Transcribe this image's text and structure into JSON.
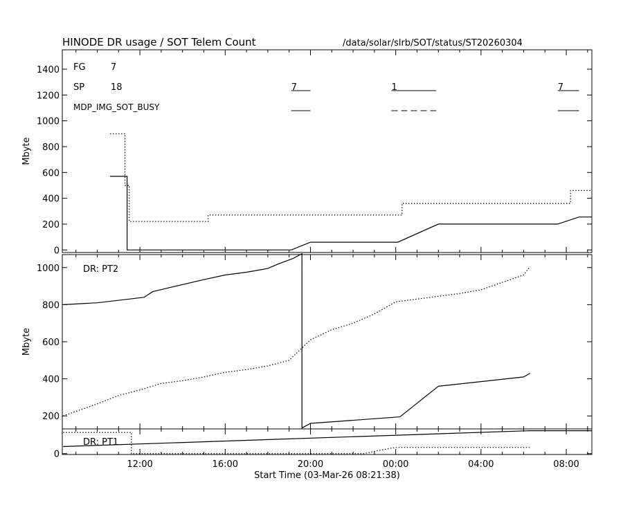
{
  "header": {
    "title": "HINODE DR usage / SOT Telem Count",
    "path": "/data/solar/slrb/SOT/status/ST20260304"
  },
  "chart_data": [
    {
      "type": "line",
      "ylabel": "Mbyte",
      "ylim": [
        -20,
        1550
      ],
      "yticks": [
        0,
        200,
        400,
        600,
        800,
        1000,
        1200,
        1400
      ],
      "xlim": [
        8.36,
        33.2
      ],
      "xticks": [
        12,
        16,
        20,
        24,
        28,
        32
      ],
      "xtick_labels": [
        "12:00",
        "16:00",
        "20:00",
        "00:00",
        "04:00",
        "08:00"
      ],
      "annotations": {
        "fg_label": "FG",
        "fg_count": "7",
        "sp_label": "SP",
        "sp_count": "18",
        "busy_label": "MDP_IMG_SOT_BUSY"
      },
      "sp_segments": [
        {
          "label": "7",
          "x": [
            19.1,
            20.0
          ]
        },
        {
          "label": "1",
          "x": [
            23.8,
            25.9
          ]
        },
        {
          "label": "7",
          "x": [
            31.6,
            32.6
          ]
        }
      ],
      "busy_segments": [
        {
          "x": [
            19.1,
            20.0
          ],
          "style": "solid"
        },
        {
          "x": [
            23.8,
            25.9
          ],
          "style": "dashed"
        },
        {
          "x": [
            31.6,
            32.6
          ],
          "style": "solid"
        }
      ],
      "series": [
        {
          "style": "solid",
          "x": [
            10.6,
            11.4,
            11.4,
            19.1,
            20.0,
            24.1,
            26.0,
            31.6,
            32.6,
            33.2
          ],
          "y": [
            570,
            570,
            0,
            0,
            60,
            60,
            200,
            200,
            255,
            255
          ]
        },
        {
          "style": "dotted",
          "x": [
            10.6,
            11.3,
            11.3,
            11.5,
            11.5,
            15.2,
            15.2,
            24.3,
            24.3,
            32.2,
            32.2,
            33.2
          ],
          "y": [
            900,
            900,
            500,
            500,
            220,
            220,
            270,
            270,
            360,
            360,
            460,
            460
          ]
        }
      ]
    },
    {
      "type": "line",
      "label": "DR: PT2",
      "ylabel": "Mbyte",
      "ylim": [
        130,
        1070
      ],
      "yticks": [
        200,
        400,
        600,
        800,
        1000
      ],
      "xlim": [
        8.36,
        33.2
      ],
      "xticks": [
        12,
        16,
        20,
        24,
        28,
        32
      ],
      "xtick_labels": [
        "12:00",
        "16:00",
        "20:00",
        "00:00",
        "04:00",
        "08:00"
      ],
      "series": [
        {
          "style": "solid",
          "x": [
            8.4,
            10.0,
            11.5,
            12.2,
            12.6,
            13.5,
            15.0,
            16.0,
            17.0,
            18.0,
            18.5,
            19.2,
            19.6,
            19.6,
            20.0,
            24.2,
            26.0,
            28.0,
            30.0,
            30.3
          ],
          "y": [
            800,
            810,
            830,
            840,
            870,
            895,
            935,
            960,
            975,
            995,
            1020,
            1050,
            1075,
            135,
            160,
            195,
            360,
            385,
            410,
            430
          ]
        },
        {
          "style": "dotted",
          "x": [
            8.4,
            10.0,
            11.0,
            12.0,
            13.0,
            14.0,
            15.0,
            16.0,
            17.0,
            18.0,
            19.0,
            20.0,
            21.0,
            22.0,
            23.0,
            24.0,
            25.0,
            26.0,
            27.0,
            28.0,
            29.0,
            30.0,
            30.3
          ],
          "y": [
            200,
            265,
            310,
            340,
            375,
            390,
            410,
            435,
            450,
            470,
            500,
            610,
            665,
            700,
            750,
            815,
            830,
            845,
            860,
            880,
            920,
            960,
            1005
          ]
        }
      ]
    },
    {
      "type": "line",
      "label": "DR: PT1",
      "ylim": [
        -5,
        140
      ],
      "yticks": [
        0
      ],
      "xlim": [
        8.36,
        33.2
      ],
      "xticks": [
        12,
        16,
        20,
        24,
        28,
        32
      ],
      "xtick_labels": [
        "12:00",
        "16:00",
        "20:00",
        "00:00",
        "04:00",
        "08:00"
      ],
      "xlabel": "Start Time (03-Mar-26 08:21:38)",
      "series": [
        {
          "style": "solid",
          "x": [
            8.4,
            30.3,
            30.3,
            33.2
          ],
          "y": [
            40,
            130,
            130,
            130
          ]
        },
        {
          "style": "dotted",
          "x": [
            8.4,
            11.6,
            11.6,
            22.5,
            22.9,
            23.3,
            24.0,
            30.3
          ],
          "y": [
            120,
            120,
            0,
            0,
            10,
            20,
            35,
            35
          ]
        }
      ]
    }
  ]
}
